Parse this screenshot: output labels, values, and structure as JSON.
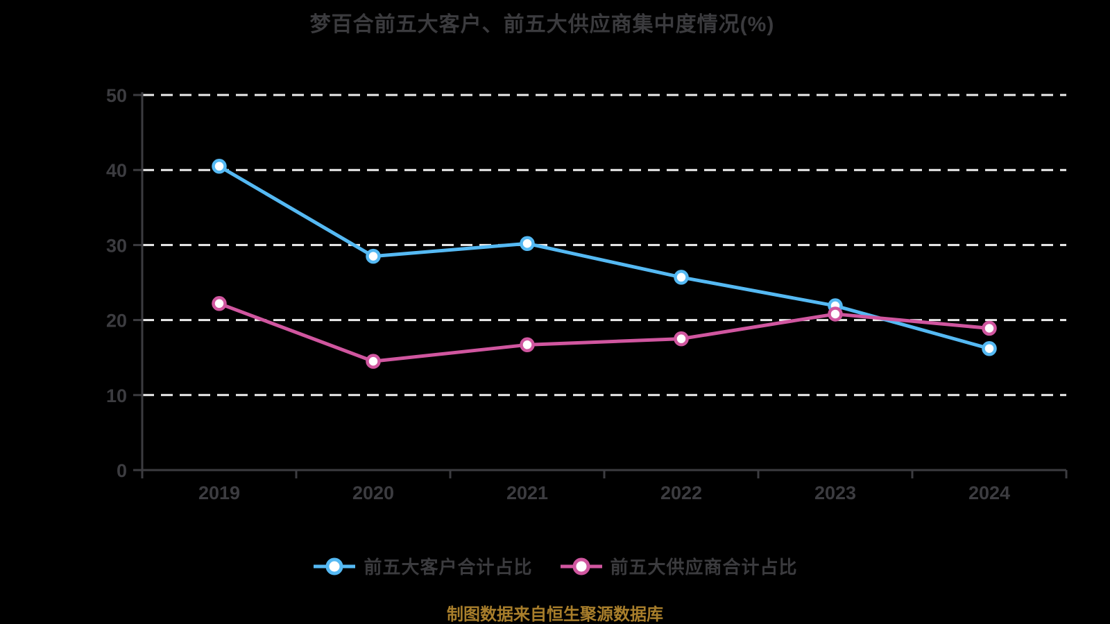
{
  "chart_data": {
    "type": "line",
    "title": "梦百合前五大客户、前五大供应商集中度情况(%)",
    "categories": [
      "2019",
      "2020",
      "2021",
      "2022",
      "2023",
      "2024"
    ],
    "series": [
      {
        "name": "前五大客户合计占比",
        "color": "#55b9f3",
        "values": [
          40.5,
          28.5,
          30.2,
          25.7,
          21.9,
          16.2
        ]
      },
      {
        "name": "前五大供应商合计占比",
        "color": "#d0569f",
        "values": [
          22.2,
          14.5,
          16.7,
          17.5,
          20.8,
          18.9
        ]
      }
    ],
    "ylim": [
      0,
      50
    ],
    "yticks": [
      0,
      10,
      20,
      30,
      40,
      50
    ],
    "grid": "horizontal-dashed",
    "legend_position": "bottom"
  },
  "source_note": "制图数据来自恒生聚源数据库",
  "colors": {
    "background": "#000000",
    "text": "#3c3c40",
    "axis": "#3c3c40",
    "grid": "#ededed",
    "marker_fill": "#ffffff",
    "source_note": "#a87e2b"
  }
}
